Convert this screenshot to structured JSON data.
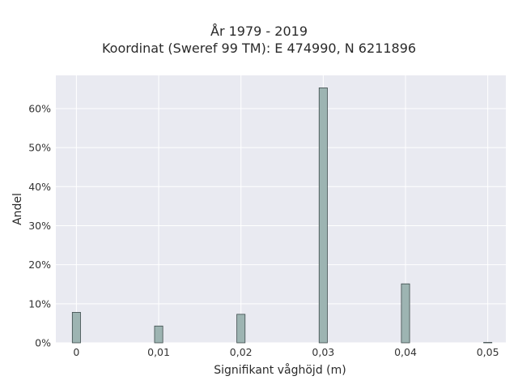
{
  "chart_data": {
    "type": "bar",
    "title_lines": [
      "År 1979 - 2019",
      "Koordinat (Sweref 99 TM): E 474990, N 6211896"
    ],
    "xlabel": "Signifikant våghöjd (m)",
    "ylabel": "Andel",
    "x_ticks": [
      "0",
      "0,01",
      "0,02",
      "0,03",
      "0,04",
      "0,05"
    ],
    "x_tick_values": [
      0,
      0.01,
      0.02,
      0.03,
      0.04,
      0.05
    ],
    "y_ticks": [
      "0%",
      "10%",
      "20%",
      "30%",
      "40%",
      "50%",
      "60%"
    ],
    "y_tick_values": [
      0,
      10,
      20,
      30,
      40,
      50,
      60
    ],
    "xlim": [
      -0.0025,
      0.0522
    ],
    "ylim": [
      0,
      68.5
    ],
    "bar_width": 0.001,
    "x": [
      0,
      0.01,
      0.02,
      0.03,
      0.04,
      0.05
    ],
    "values": [
      7.8,
      4.3,
      7.3,
      65.3,
      15.1,
      0.1
    ],
    "grid": true,
    "colors": {
      "bar_fill": "#9db4b2",
      "bar_stroke": "#3c4a4a",
      "plot_bg": "#e9eaf1",
      "grid": "#ffffff"
    }
  }
}
